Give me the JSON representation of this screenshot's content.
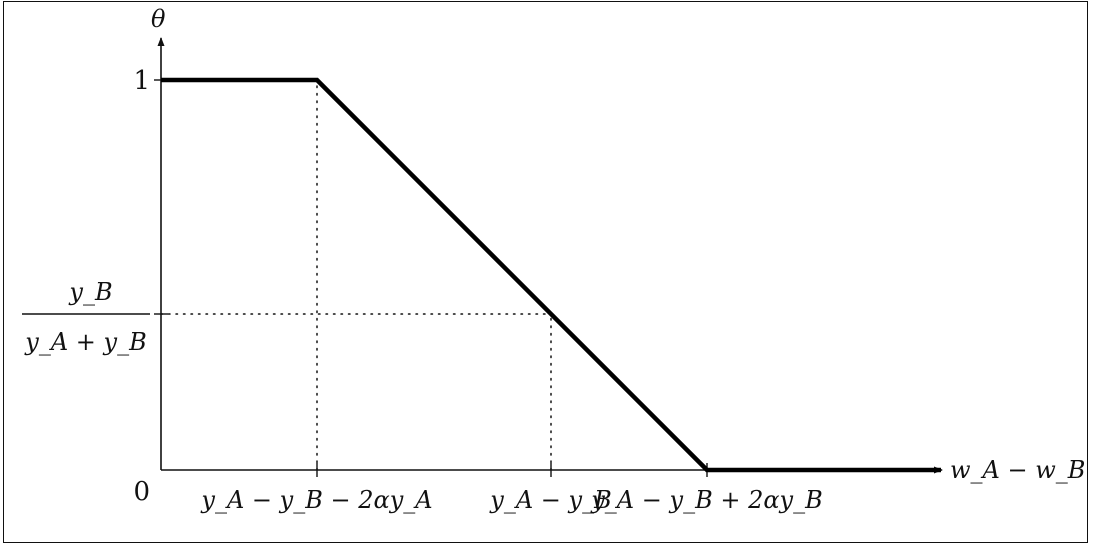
{
  "chart_data": {
    "type": "line",
    "title": "",
    "xlabel": "w_A − w_B",
    "ylabel": "θ",
    "x_ticks": [
      {
        "x": 1,
        "label": "y_A − y_B − 2αy_A"
      },
      {
        "x": 2.5,
        "label": "y_A − y_B"
      },
      {
        "x": 3.5,
        "label": "y_A − y_B + 2αy_B"
      }
    ],
    "y_ticks": [
      {
        "y": 0,
        "label": "0"
      },
      {
        "y": 0.4,
        "label_numerator": "y_B",
        "label_denominator": "y_A + y_B"
      },
      {
        "y": 1,
        "label": "1"
      }
    ],
    "series": [
      {
        "x": [
          0,
          1,
          3.5,
          5
        ],
        "y": [
          1,
          1,
          0,
          0
        ]
      }
    ],
    "guides": [
      {
        "from": [
          1,
          0
        ],
        "to": [
          1,
          1
        ]
      },
      {
        "from": [
          0,
          0.4
        ],
        "to": [
          2.5,
          0.4
        ]
      },
      {
        "from": [
          2.5,
          0
        ],
        "to": [
          2.5,
          0.4
        ]
      }
    ],
    "xlim": [
      0,
      5
    ],
    "ylim": [
      0,
      1
    ],
    "grid": false,
    "legend": "none",
    "colors": {
      "line": "#000000",
      "axis": "#111111",
      "guide": "#111111"
    }
  }
}
